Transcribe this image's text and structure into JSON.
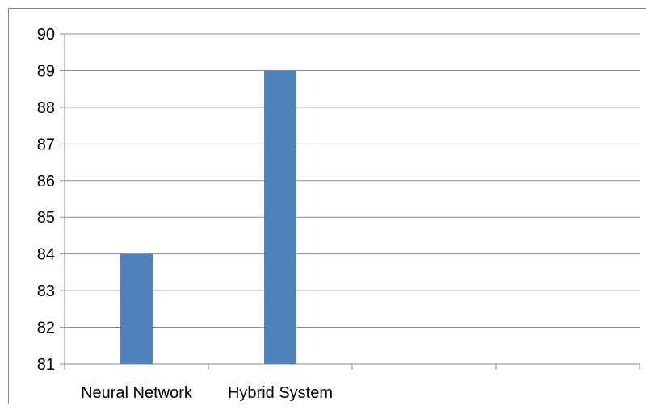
{
  "chart_data": {
    "type": "bar",
    "title": "",
    "xlabel": "",
    "ylabel": "",
    "categories": [
      "Neural Network",
      "Hybrid System",
      "",
      ""
    ],
    "values": [
      84,
      89,
      null,
      null
    ],
    "ylim": [
      81,
      90
    ],
    "yticks": [
      81,
      82,
      83,
      84,
      85,
      86,
      87,
      88,
      89,
      90
    ],
    "grid": true,
    "legend": "none",
    "bar_color": "#4f81bd"
  }
}
